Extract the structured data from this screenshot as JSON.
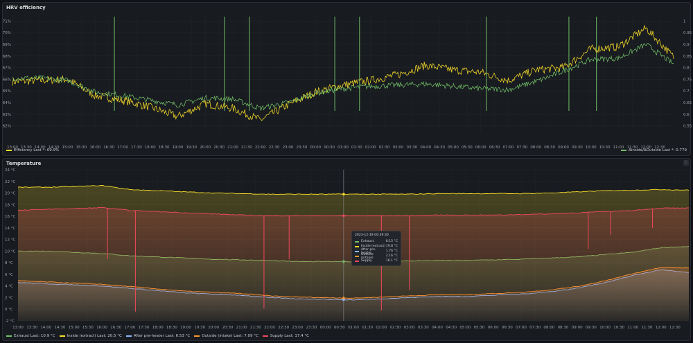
{
  "chart_data": [
    {
      "type": "line",
      "title": "HRV efficiency",
      "x_ticks": [
        "13:00",
        "13:30",
        "14:00",
        "14:30",
        "15:00",
        "15:30",
        "16:00",
        "16:30",
        "17:00",
        "17:30",
        "18:00",
        "18:30",
        "19:00",
        "19:30",
        "20:00",
        "20:30",
        "21:00",
        "21:30",
        "22:00",
        "22:30",
        "23:00",
        "23:30",
        "00:00",
        "00:30",
        "01:00",
        "01:30",
        "02:00",
        "02:30",
        "03:00",
        "03:30",
        "04:00",
        "04:30",
        "05:00",
        "05:30",
        "06:00",
        "06:30",
        "07:00",
        "07:30",
        "08:00",
        "08:30",
        "09:00",
        "09:30",
        "10:00",
        "10:30",
        "11:00",
        "11:30",
        "12:00",
        "12:30"
      ],
      "y_left_ticks": [
        "71%",
        "70%",
        "69%",
        "68%",
        "67%",
        "66%",
        "65%",
        "64%",
        "63%",
        "62%"
      ],
      "y_left_range": [
        61.5,
        71.5
      ],
      "y_right_ticks": [
        "1",
        "0.95",
        "0.9",
        "0.85",
        "0.8",
        "0.75",
        "0.7",
        "0.65",
        "0.6",
        "0.55"
      ],
      "y_right_range": [
        0.525,
        1.025
      ],
      "x_hours": [
        0,
        1,
        2,
        3,
        4,
        5,
        6,
        7,
        8,
        9,
        10,
        11,
        12,
        13,
        14,
        15,
        16,
        17,
        18,
        19,
        20,
        21,
        22,
        23,
        24
      ],
      "series": [
        {
          "name": "Efficiency",
          "color": "#fade2a",
          "axis": "left",
          "values": [
            65.8,
            65.9,
            66.0,
            64.6,
            64.2,
            63.6,
            62.8,
            63.9,
            63.5,
            62.5,
            63.8,
            64.9,
            65.5,
            65.9,
            66.4,
            67.2,
            66.8,
            66.6,
            65.9,
            66.8,
            67.0,
            68.6,
            68.8,
            70.4,
            67.9
          ]
        },
        {
          "name": "Δinside/ΔOutside",
          "color": "#73bf69",
          "axis": "right",
          "values": [
            0.755,
            0.755,
            0.745,
            0.695,
            0.68,
            0.66,
            0.64,
            0.67,
            0.665,
            0.625,
            0.65,
            0.69,
            0.71,
            0.72,
            0.725,
            0.73,
            0.72,
            0.71,
            0.705,
            0.74,
            0.785,
            0.835,
            0.84,
            0.9,
            0.815
          ]
        }
      ],
      "spike_hours": [
        3.7,
        7.7,
        8.6,
        11.7,
        12.6,
        17.2,
        20.2,
        21.2
      ],
      "legend": [
        {
          "label": "Efficiency  Last *: 69.9%",
          "color": "#fade2a"
        },
        {
          "label": "Δinside/ΔOutside  Last *: 0.779",
          "color": "#73bf69"
        }
      ]
    },
    {
      "type": "area",
      "title": "Temperature",
      "x_ticks": [
        "13:00",
        "13:30",
        "14:00",
        "14:30",
        "15:00",
        "15:30",
        "16:00",
        "16:30",
        "17:00",
        "17:30",
        "18:00",
        "18:30",
        "19:00",
        "19:30",
        "20:00",
        "20:30",
        "21:00",
        "21:30",
        "22:00",
        "22:30",
        "23:00",
        "23:30",
        "00:00",
        "00:30",
        "01:00",
        "01:30",
        "02:00",
        "02:30",
        "03:00",
        "03:30",
        "04:00",
        "04:30",
        "05:00",
        "05:30",
        "06:00",
        "06:30",
        "07:00",
        "07:30",
        "08:00",
        "08:30",
        "09:00",
        "09:30",
        "10:00",
        "10:30",
        "11:00",
        "11:30",
        "12:00",
        "12:30"
      ],
      "y_ticks": [
        "24 °C",
        "22 °C",
        "20 °C",
        "18 °C",
        "16 °C",
        "14 °C",
        "12 °C",
        "10 °C",
        "8 °C",
        "6 °C",
        "4 °C",
        "2 °C",
        "0 °C",
        "-2 °C"
      ],
      "y_range": [
        -2,
        24
      ],
      "x_hours": [
        0,
        1,
        2,
        3,
        4,
        5,
        6,
        7,
        8,
        9,
        10,
        11,
        12,
        13,
        14,
        15,
        16,
        17,
        18,
        19,
        20,
        21,
        22,
        23,
        24
      ],
      "series": [
        {
          "name": "Exhaust",
          "color": "#73bf69",
          "values": [
            10.0,
            10.0,
            9.8,
            9.6,
            9.2,
            9.0,
            8.8,
            8.6,
            8.5,
            8.4,
            8.2,
            8.2,
            8.2,
            8.2,
            8.3,
            8.4,
            8.4,
            8.5,
            8.6,
            8.8,
            9.0,
            9.4,
            9.8,
            10.6,
            10.8
          ]
        },
        {
          "name": "Inside (extract)",
          "color": "#fade2a",
          "values": [
            21.0,
            21.0,
            21.1,
            21.3,
            20.6,
            20.4,
            20.2,
            20.0,
            19.9,
            19.8,
            19.8,
            19.8,
            19.8,
            19.8,
            19.8,
            19.9,
            19.9,
            19.9,
            19.9,
            20.0,
            20.2,
            20.4,
            20.5,
            20.6,
            20.5
          ]
        },
        {
          "name": "After pre-heater",
          "color": "#8ab8ff",
          "values": [
            4.6,
            4.4,
            4.2,
            4.0,
            3.6,
            3.2,
            2.8,
            2.6,
            2.4,
            2.0,
            1.8,
            1.7,
            1.6,
            1.8,
            2.0,
            2.2,
            2.2,
            2.4,
            2.6,
            3.0,
            3.6,
            4.6,
            5.8,
            6.8,
            6.3
          ]
        },
        {
          "name": "Outside (intake)",
          "color": "#ff9830",
          "values": [
            4.9,
            4.7,
            4.5,
            4.3,
            3.9,
            3.5,
            3.1,
            2.9,
            2.7,
            2.3,
            2.1,
            2.0,
            1.9,
            2.1,
            2.3,
            2.5,
            2.5,
            2.7,
            2.9,
            3.3,
            3.9,
            4.9,
            6.1,
            7.2,
            7.1
          ]
        },
        {
          "name": "Supply",
          "color": "#f2495c",
          "values": [
            17.0,
            17.2,
            17.3,
            17.5,
            17.0,
            16.8,
            16.6,
            16.4,
            16.2,
            16.1,
            16.1,
            16.1,
            16.1,
            16.1,
            16.1,
            16.2,
            16.2,
            16.2,
            16.3,
            16.4,
            16.6,
            16.8,
            17.0,
            17.4,
            17.4
          ]
        }
      ],
      "supply_spikes": [
        {
          "h": 3.2,
          "v": 8.6
        },
        {
          "h": 4.2,
          "v": -0.4
        },
        {
          "h": 8.8,
          "v": 0.1
        },
        {
          "h": 9.7,
          "v": 8.6
        },
        {
          "h": 13.0,
          "v": -0.2
        },
        {
          "h": 14.0,
          "v": 3.3
        },
        {
          "h": 20.4,
          "v": 10.4
        },
        {
          "h": 21.2,
          "v": 12.8
        },
        {
          "h": 22.7,
          "v": 14.0
        }
      ],
      "cursor_hour": 11.65,
      "legend": [
        {
          "label": "Exhaust  Last: 10.9 °C",
          "color": "#73bf69"
        },
        {
          "label": "Inside (extract)  Last: 20.5 °C",
          "color": "#fade2a"
        },
        {
          "label": "After pre-heater  Last: 6.53 °C",
          "color": "#8ab8ff"
        },
        {
          "label": "Outside (intake)  Last: 7.09 °C",
          "color": "#ff9830"
        },
        {
          "label": "Supply  Last: 17.4 °C",
          "color": "#f2495c"
        }
      ],
      "tooltip": {
        "time": "2023-12-19 00:39:30",
        "rows": [
          {
            "name": "Exhaust",
            "value": "8.15 °C",
            "color": "#73bf69"
          },
          {
            "name": "Inside (extract)",
            "value": "19.8 °C",
            "color": "#fade2a"
          },
          {
            "name": "After pre-heater",
            "value": "1.76 °C",
            "color": "#8ab8ff"
          },
          {
            "name": "Outside (intake)",
            "value": "2.16 °C",
            "color": "#ff9830"
          },
          {
            "name": "Supply",
            "value": "16.1 °C",
            "color": "#f2495c"
          }
        ]
      }
    }
  ]
}
